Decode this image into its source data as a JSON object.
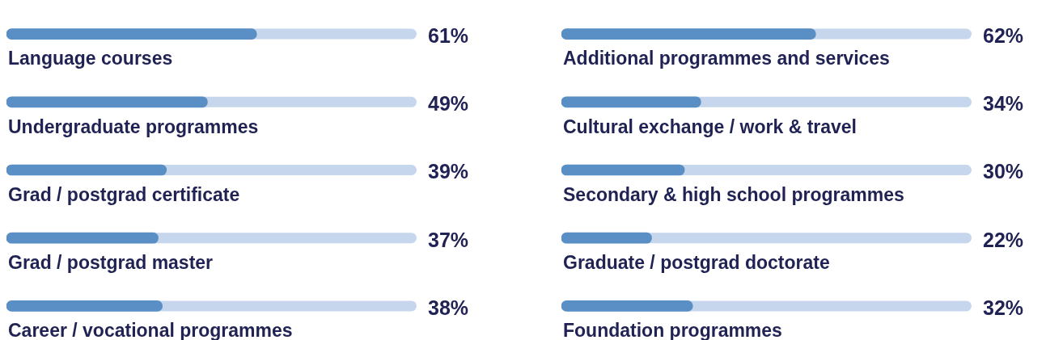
{
  "chart_data": [
    {
      "type": "bar",
      "orientation": "horizontal",
      "categories": [
        "Language courses",
        "Undergraduate programmes",
        "Grad / postgrad certificate",
        "Grad / postgrad master",
        "Career / vocational programmes"
      ],
      "values": [
        61,
        49,
        39,
        37,
        38
      ],
      "value_labels": [
        "61%",
        "49%",
        "39%",
        "37%",
        "38%"
      ],
      "color": "#5a8fc5",
      "xlim": [
        0,
        100
      ],
      "tick_labels": false
    },
    {
      "type": "bar",
      "orientation": "horizontal",
      "categories": [
        "Additional programmes and services",
        "Cultural exchange / work & travel",
        "Secondary & high school programmes",
        "Graduate / postgrad doctorate",
        "Foundation programmes"
      ],
      "values": [
        62,
        34,
        30,
        22,
        32
      ],
      "value_labels": [
        "62%",
        "34%",
        "30%",
        "22%",
        "32%"
      ],
      "color": "#5a8fc5",
      "xlim": [
        0,
        100
      ],
      "tick_labels": false
    }
  ]
}
